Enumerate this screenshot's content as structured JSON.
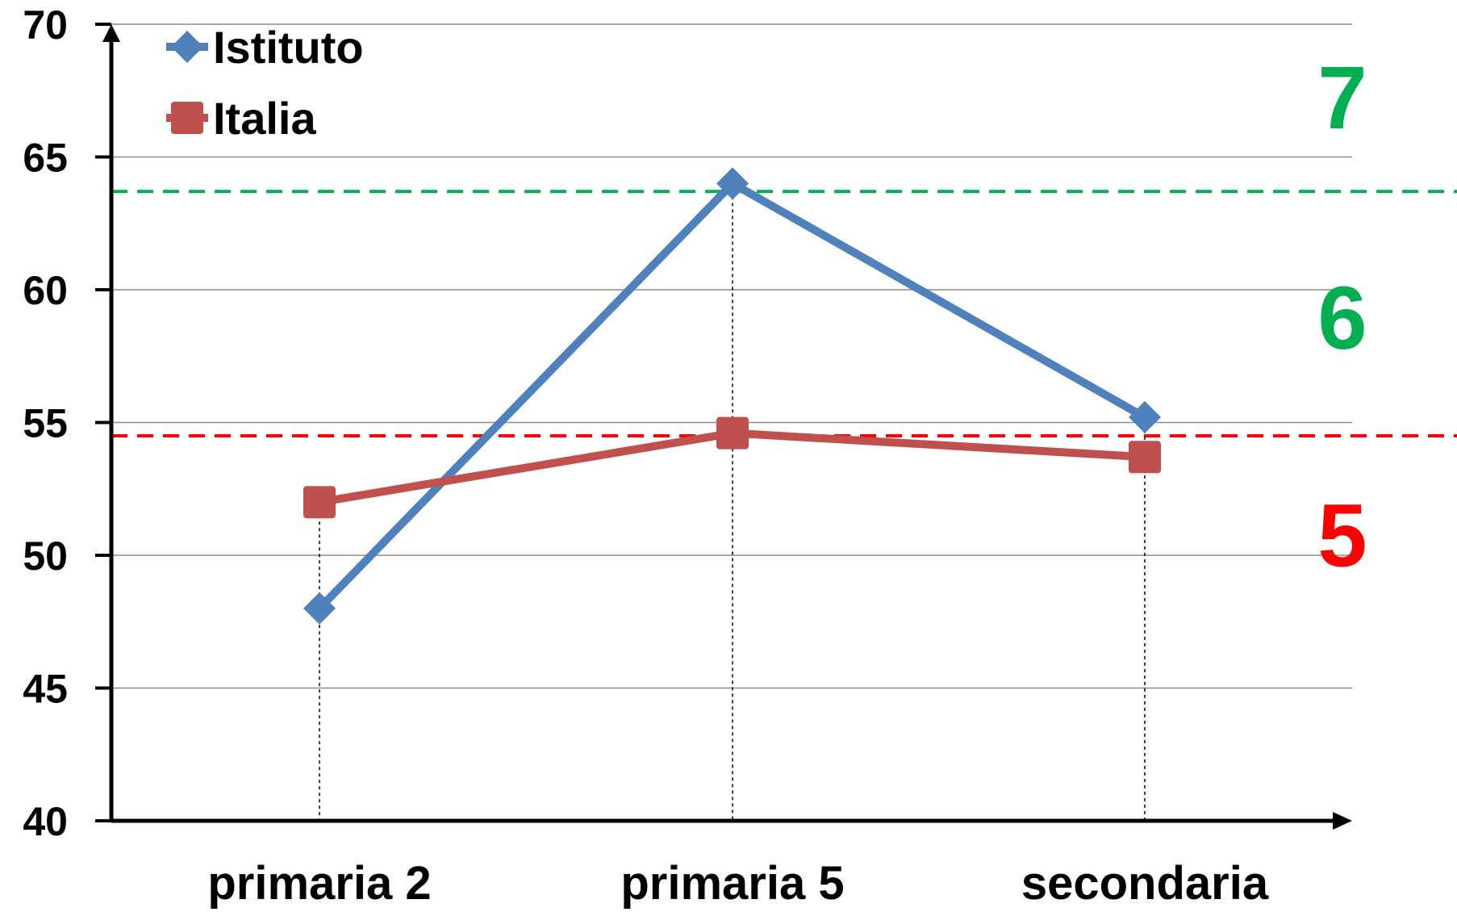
{
  "chart_data": {
    "type": "line",
    "categories": [
      "primaria 2",
      "primaria 5",
      "secondaria"
    ],
    "series": [
      {
        "name": "Istituto",
        "values": [
          48.0,
          64.0,
          55.2
        ],
        "color": "#4F81BD",
        "marker": "diamond"
      },
      {
        "name": "Italia",
        "values": [
          52.0,
          54.6,
          53.7
        ],
        "color": "#C0504D",
        "marker": "square"
      }
    ],
    "ylim": [
      40,
      70
    ],
    "yticks": [
      "40",
      "45",
      "50",
      "55",
      "60",
      "65",
      "70"
    ],
    "grid": true,
    "legend_position": "top-left",
    "reference_lines": [
      {
        "value": 63.7,
        "color": "#00B050",
        "style": "dashed"
      },
      {
        "value": 54.5,
        "color": "#FF0000",
        "style": "dashed"
      }
    ],
    "zone_labels": [
      {
        "text": "7",
        "y_value": 67.3,
        "color": "#00B050"
      },
      {
        "text": "6",
        "y_value": 59.0,
        "color": "#00B050"
      },
      {
        "text": "5",
        "y_value": 50.8,
        "color": "#FF0000"
      }
    ],
    "title": "",
    "xlabel": "",
    "ylabel": ""
  }
}
